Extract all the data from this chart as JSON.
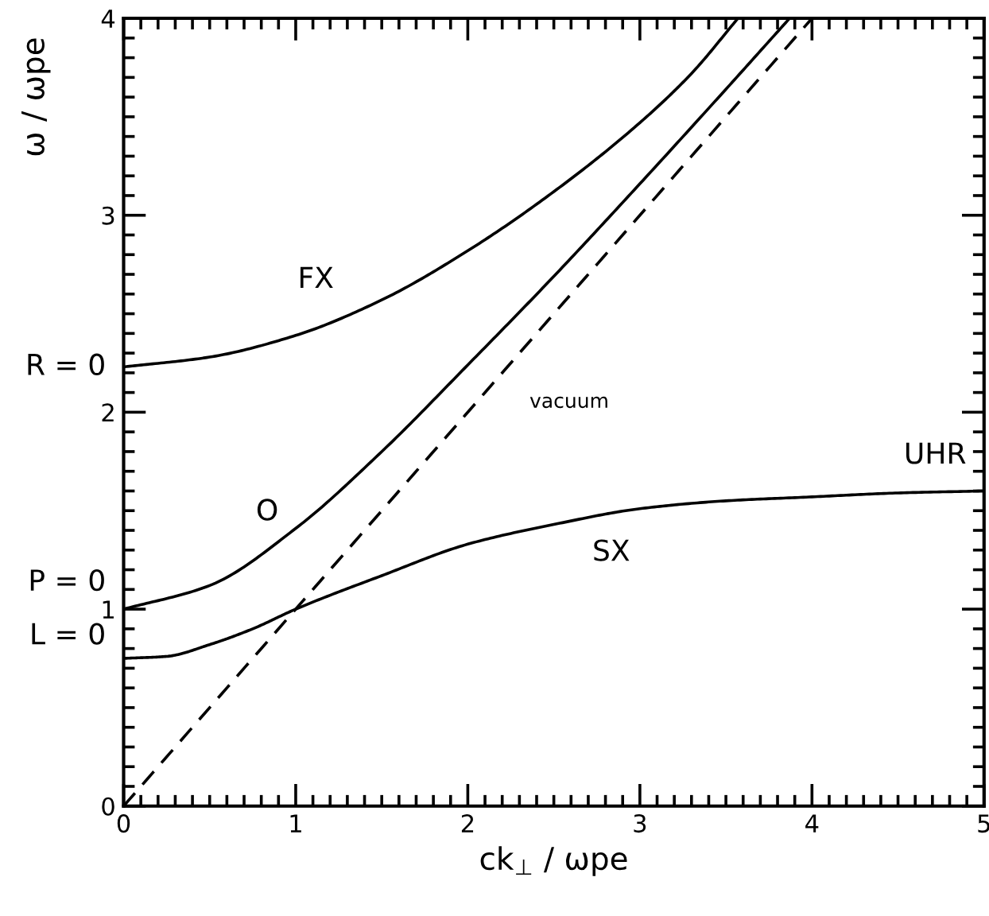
{
  "chart_data": {
    "type": "line",
    "xlabel": "ck$_{⊥}$ / ωpe",
    "ylabel": "ω / ωpe",
    "xlim": [
      0,
      5
    ],
    "ylim": [
      0,
      4
    ],
    "xticks": [
      0,
      {
        "value": 0.1,
        "label": null
      },
      {
        "value": 0.2,
        "label": null
      },
      {
        "value": 0.3,
        "label": null
      },
      {
        "value": 0.4,
        "label": null
      },
      {
        "value": 0.5,
        "label": null
      },
      {
        "value": 0.6,
        "label": null
      },
      {
        "value": 0.7,
        "label": null
      },
      {
        "value": 0.8,
        "label": null
      },
      {
        "value": 0.9,
        "label": null
      },
      1,
      {
        "value": 1.1,
        "label": null
      },
      {
        "value": 1.2,
        "label": null
      },
      {
        "value": 1.3,
        "label": null
      },
      {
        "value": 1.4,
        "label": null
      },
      {
        "value": 1.5,
        "label": null
      },
      {
        "value": 1.6,
        "label": null
      },
      {
        "value": 1.7,
        "label": null
      },
      {
        "value": 1.8,
        "label": null
      },
      {
        "value": 1.9,
        "label": null
      },
      2,
      {
        "value": 2.1,
        "label": null
      },
      {
        "value": 2.2,
        "label": null
      },
      {
        "value": 2.3,
        "label": null
      },
      {
        "value": 2.4,
        "label": null
      },
      {
        "value": 2.5,
        "label": null
      },
      {
        "value": 2.6,
        "label": null
      },
      {
        "value": 2.7,
        "label": null
      },
      {
        "value": 2.8,
        "label": null
      },
      {
        "value": 2.9,
        "label": null
      },
      3,
      {
        "value": 3.1,
        "label": null
      },
      {
        "value": 3.2,
        "label": null
      },
      {
        "value": 3.3,
        "label": null
      },
      {
        "value": 3.4,
        "label": null
      },
      {
        "value": 3.5,
        "label": null
      },
      {
        "value": 3.6,
        "label": null
      },
      {
        "value": 3.7,
        "label": null
      },
      {
        "value": 3.8,
        "label": null
      },
      {
        "value": 3.9,
        "label": null
      },
      4,
      {
        "value": 4.1,
        "label": null
      },
      {
        "value": 4.2,
        "label": null
      },
      {
        "value": 4.3,
        "label": null
      },
      {
        "value": 4.4,
        "label": null
      },
      {
        "value": 4.5,
        "label": null
      },
      {
        "value": 4.6,
        "label": null
      },
      {
        "value": 4.7,
        "label": null
      },
      {
        "value": 4.8,
        "label": null
      },
      {
        "value": 4.9,
        "label": null
      },
      5
    ],
    "yticks": [
      0,
      {
        "value": 0.1,
        "label": null
      },
      {
        "value": 0.2,
        "label": null
      },
      {
        "value": 0.3,
        "label": null
      },
      {
        "value": 0.4,
        "label": null
      },
      {
        "value": 0.5,
        "label": null
      },
      {
        "value": 0.6,
        "label": null
      },
      {
        "value": 0.7,
        "label": null
      },
      {
        "value": 0.8,
        "label": null
      },
      {
        "value": 0.9,
        "label": null
      },
      1,
      {
        "value": 1.1,
        "label": null
      },
      {
        "value": 1.2,
        "label": null
      },
      {
        "value": 1.3,
        "label": null
      },
      {
        "value": 1.4,
        "label": null
      },
      {
        "value": 1.5,
        "label": null
      },
      {
        "value": 1.6,
        "label": null
      },
      {
        "value": 1.7,
        "label": null
      },
      {
        "value": 1.8,
        "label": null
      },
      {
        "value": 1.9,
        "label": null
      },
      2,
      {
        "value": 2.1,
        "label": null
      },
      {
        "value": 2.2,
        "label": null
      },
      {
        "value": 2.3,
        "label": null
      },
      {
        "value": 2.4,
        "label": null
      },
      {
        "value": 2.5,
        "label": null
      },
      {
        "value": 2.6,
        "label": null
      },
      {
        "value": 2.7,
        "label": null
      },
      {
        "value": 2.8,
        "label": null
      },
      {
        "value": 2.9,
        "label": null
      },
      3,
      {
        "value": 3.1,
        "label": null
      },
      {
        "value": 3.2,
        "label": null
      },
      {
        "value": 3.3,
        "label": null
      },
      {
        "value": 3.4,
        "label": null
      },
      {
        "value": 3.5,
        "label": null
      },
      {
        "value": 3.6,
        "label": null
      },
      {
        "value": 3.7,
        "label": null
      },
      {
        "value": 3.8,
        "label": null
      },
      {
        "value": 3.9,
        "label": null
      },
      4
    ],
    "grid": false,
    "legend": false,
    "marker": "none",
    "series": [
      {
        "name": "FX",
        "color": "#000000",
        "line_style": "solid",
        "x": [
          0,
          0.5,
          1,
          1.5,
          2,
          2.5,
          3,
          3.3,
          3.57
        ],
        "values": [
          2.23,
          2.28,
          2.39,
          2.57,
          2.82,
          3.12,
          3.47,
          3.72,
          4.0
        ]
      },
      {
        "name": "O",
        "color": "#000000",
        "line_style": "solid",
        "x": [
          0,
          0.5,
          1,
          1.5,
          2,
          2.5,
          3,
          3.5,
          3.87
        ],
        "values": [
          1.0,
          1.12,
          1.41,
          1.8,
          2.24,
          2.69,
          3.16,
          3.64,
          4.0
        ]
      },
      {
        "name": "SX",
        "color": "#000000",
        "line_style": "solid",
        "x": [
          0,
          0.25,
          0.5,
          0.75,
          1,
          1.5,
          2,
          2.5,
          3,
          3.5,
          4,
          4.5,
          5
        ],
        "values": [
          0.75,
          0.76,
          0.82,
          0.9,
          1.0,
          1.17,
          1.33,
          1.43,
          1.51,
          1.55,
          1.57,
          1.59,
          1.6
        ]
      },
      {
        "name": "vacuum",
        "color": "#000000",
        "line_style": "dashed",
        "x": [
          0,
          4
        ],
        "values": [
          0,
          4
        ]
      }
    ],
    "annotations": [
      "R = 0",
      "P = 0",
      "L = 0",
      "UHR"
    ]
  }
}
